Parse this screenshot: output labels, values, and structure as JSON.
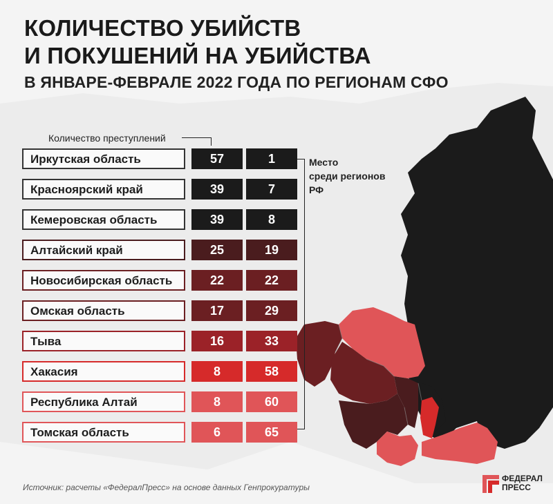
{
  "title": {
    "line1": "КОЛИЧЕСТВО УБИЙСТВ",
    "line2": "И ПОКУШЕНИЙ НА УБИЙСТВА",
    "subtitle": "В ЯНВАРЕ-ФЕВРАЛЕ 2022 ГОДА ПО РЕГИОНАМ СФО"
  },
  "chart_data": {
    "type": "table",
    "title": "КОЛИЧЕСТВО УБИЙСТВ И ПОКУШЕНИЙ НА УБИЙСТВА",
    "subtitle": "В ЯНВАРЕ-ФЕВРАЛЕ 2022 ГОДА ПО РЕГИОНАМ СФО",
    "columns": [
      "Количество преступлений",
      "Место среди регионов РФ"
    ],
    "count_header": "Количество преступлений",
    "rank_header_lines": [
      "Место",
      "среди регионов",
      "РФ"
    ],
    "rows": [
      {
        "region": "Иркутская область",
        "count": 57,
        "rank": 1,
        "color": "#1b1b1b"
      },
      {
        "region": "Красноярский край",
        "count": 39,
        "rank": 7,
        "color": "#1b1b1b"
      },
      {
        "region": "Кемеровская область",
        "count": 39,
        "rank": 8,
        "color": "#1b1b1b"
      },
      {
        "region": "Алтайский край",
        "count": 25,
        "rank": 19,
        "color": "#4a1c1e"
      },
      {
        "region": "Новосибирская область",
        "count": 22,
        "rank": 22,
        "color": "#6b1f22"
      },
      {
        "region": "Омская область",
        "count": 17,
        "rank": 29,
        "color": "#6b1f22"
      },
      {
        "region": "Тыва",
        "count": 16,
        "rank": 33,
        "color": "#9b2228"
      },
      {
        "region": "Хакасия",
        "count": 8,
        "rank": 58,
        "color": "#d62a2a"
      },
      {
        "region": "Республика Алтай",
        "count": 8,
        "rank": 60,
        "color": "#e05558"
      },
      {
        "region": "Томская область",
        "count": 6,
        "rank": 65,
        "color": "#e05558"
      }
    ]
  },
  "source": "Источник: расчеты «ФедералПресс» на основе данных Генпрокуратуры",
  "logo": {
    "line1": "ФЕДЕРАЛ",
    "line2": "ПРЕСС",
    "icon": "federalpress-logo-icon"
  },
  "colors": {
    "darkest": "#1b1b1b",
    "dark_maroon": "#4a1c1e",
    "maroon": "#6b1f22",
    "red_dark": "#9b2228",
    "red": "#d62a2a",
    "red_light": "#e05558",
    "background": "#f4f4f4"
  }
}
